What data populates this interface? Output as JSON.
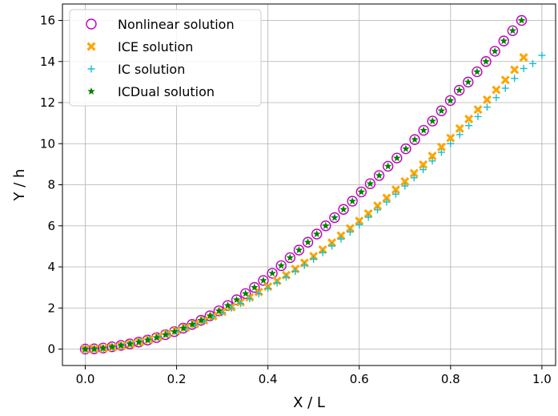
{
  "chart_data": {
    "type": "scatter",
    "title": "",
    "xlabel": "X / L",
    "ylabel": "Y / h",
    "xlim": [
      -0.05,
      1.03
    ],
    "ylim": [
      -0.8,
      16.8
    ],
    "xticks": [
      0.0,
      0.2,
      0.4,
      0.6,
      0.8,
      1.0
    ],
    "xtick_labels": [
      "0.0",
      "0.2",
      "0.4",
      "0.6",
      "0.8",
      "1.0"
    ],
    "yticks": [
      0,
      2,
      4,
      6,
      8,
      10,
      12,
      14,
      16
    ],
    "ytick_labels": [
      "0",
      "2",
      "4",
      "6",
      "8",
      "10",
      "12",
      "14",
      "16"
    ],
    "grid": true,
    "legend_position": "top-left",
    "series": [
      {
        "name": "Nonlinear solution",
        "marker": "open-circle",
        "color": "#bf00bf",
        "x": [
          0,
          0.0195,
          0.039,
          0.0585,
          0.078,
          0.0975,
          0.117,
          0.1365,
          0.156,
          0.1755,
          0.195,
          0.2145,
          0.234,
          0.2535,
          0.273,
          0.2925,
          0.312,
          0.3315,
          0.351,
          0.3705,
          0.39,
          0.4095,
          0.429,
          0.4485,
          0.468,
          0.4875,
          0.507,
          0.5265,
          0.546,
          0.5655,
          0.585,
          0.6045,
          0.624,
          0.6435,
          0.663,
          0.6825,
          0.702,
          0.7215,
          0.741,
          0.7605,
          0.78,
          0.7995,
          0.819,
          0.8385,
          0.858,
          0.8775,
          0.897,
          0.9165,
          0.936,
          0.9555
        ],
        "y": [
          0,
          0.01,
          0.05,
          0.11,
          0.18,
          0.25,
          0.34,
          0.44,
          0.56,
          0.7,
          0.85,
          1.02,
          1.2,
          1.4,
          1.62,
          1.86,
          2.12,
          2.4,
          2.7,
          3.0,
          3.34,
          3.69,
          4.06,
          4.45,
          4.82,
          5.2,
          5.6,
          6.0,
          6.4,
          6.8,
          7.2,
          7.65,
          8.05,
          8.45,
          8.9,
          9.3,
          9.75,
          10.2,
          10.65,
          11.1,
          11.6,
          12.1,
          12.6,
          13.0,
          13.5,
          14.0,
          14.5,
          15.0,
          15.5,
          16.0
        ]
      },
      {
        "name": "ICE solution",
        "marker": "x-filled",
        "color": "#ffa500",
        "x": [
          0,
          0.02,
          0.04,
          0.06,
          0.08,
          0.1,
          0.12,
          0.14,
          0.16,
          0.18,
          0.2,
          0.22,
          0.24,
          0.26,
          0.28,
          0.3,
          0.32,
          0.34,
          0.36,
          0.38,
          0.4,
          0.42,
          0.44,
          0.46,
          0.48,
          0.5,
          0.52,
          0.54,
          0.56,
          0.58,
          0.6,
          0.62,
          0.64,
          0.66,
          0.68,
          0.7,
          0.72,
          0.74,
          0.76,
          0.78,
          0.8,
          0.82,
          0.84,
          0.86,
          0.88,
          0.9,
          0.92,
          0.94,
          0.96
        ],
        "y": [
          0,
          0.01,
          0.04,
          0.09,
          0.16,
          0.25,
          0.35,
          0.47,
          0.6,
          0.75,
          0.9,
          1.05,
          1.22,
          1.4,
          1.6,
          1.82,
          2.04,
          2.28,
          2.52,
          2.78,
          3.04,
          3.32,
          3.6,
          3.9,
          4.2,
          4.52,
          4.84,
          5.18,
          5.52,
          5.88,
          6.24,
          6.6,
          6.98,
          7.36,
          7.76,
          8.16,
          8.56,
          8.98,
          9.4,
          9.84,
          10.28,
          10.74,
          11.2,
          11.66,
          12.14,
          12.62,
          13.1,
          13.6,
          14.2
        ]
      },
      {
        "name": "IC solution",
        "marker": "plus",
        "color": "#17becf",
        "x": [
          0,
          0.02,
          0.04,
          0.06,
          0.08,
          0.1,
          0.12,
          0.14,
          0.16,
          0.18,
          0.2,
          0.22,
          0.24,
          0.26,
          0.28,
          0.3,
          0.32,
          0.34,
          0.36,
          0.38,
          0.4,
          0.42,
          0.44,
          0.46,
          0.48,
          0.5,
          0.52,
          0.54,
          0.56,
          0.58,
          0.6,
          0.62,
          0.64,
          0.66,
          0.68,
          0.7,
          0.72,
          0.74,
          0.76,
          0.78,
          0.8,
          0.82,
          0.84,
          0.86,
          0.88,
          0.9,
          0.92,
          0.94,
          0.96,
          0.98,
          1.0
        ],
        "y": [
          0,
          0.01,
          0.04,
          0.09,
          0.16,
          0.25,
          0.35,
          0.46,
          0.58,
          0.72,
          0.88,
          1.02,
          1.2,
          1.38,
          1.58,
          1.78,
          2.0,
          2.22,
          2.46,
          2.7,
          2.96,
          3.22,
          3.5,
          3.78,
          4.08,
          4.38,
          4.7,
          5.02,
          5.36,
          5.7,
          6.06,
          6.42,
          6.78,
          7.16,
          7.54,
          7.94,
          8.34,
          8.74,
          9.16,
          9.58,
          10.0,
          10.44,
          10.88,
          11.32,
          11.78,
          12.24,
          12.7,
          13.18,
          13.66,
          13.9,
          14.3
        ]
      },
      {
        "name": "ICDual solution",
        "marker": "star",
        "color": "#008000",
        "x": [
          0,
          0.0195,
          0.039,
          0.0585,
          0.078,
          0.0975,
          0.117,
          0.1365,
          0.156,
          0.1755,
          0.195,
          0.2145,
          0.234,
          0.2535,
          0.273,
          0.2925,
          0.312,
          0.3315,
          0.351,
          0.3705,
          0.39,
          0.4095,
          0.429,
          0.4485,
          0.468,
          0.4875,
          0.507,
          0.5265,
          0.546,
          0.5655,
          0.585,
          0.6045,
          0.624,
          0.6435,
          0.663,
          0.6825,
          0.702,
          0.7215,
          0.741,
          0.7605,
          0.78,
          0.7995,
          0.819,
          0.8385,
          0.858,
          0.8775,
          0.897,
          0.9165,
          0.936,
          0.9555
        ],
        "y": [
          0,
          0.01,
          0.05,
          0.11,
          0.18,
          0.25,
          0.34,
          0.44,
          0.56,
          0.7,
          0.85,
          1.02,
          1.2,
          1.4,
          1.62,
          1.86,
          2.12,
          2.4,
          2.7,
          3.0,
          3.34,
          3.69,
          4.06,
          4.45,
          4.82,
          5.2,
          5.6,
          6.0,
          6.4,
          6.8,
          7.2,
          7.65,
          8.05,
          8.45,
          8.9,
          9.3,
          9.75,
          10.2,
          10.65,
          11.1,
          11.6,
          12.1,
          12.6,
          13.0,
          13.5,
          14.0,
          14.5,
          15.0,
          15.5,
          16.0
        ]
      }
    ]
  }
}
